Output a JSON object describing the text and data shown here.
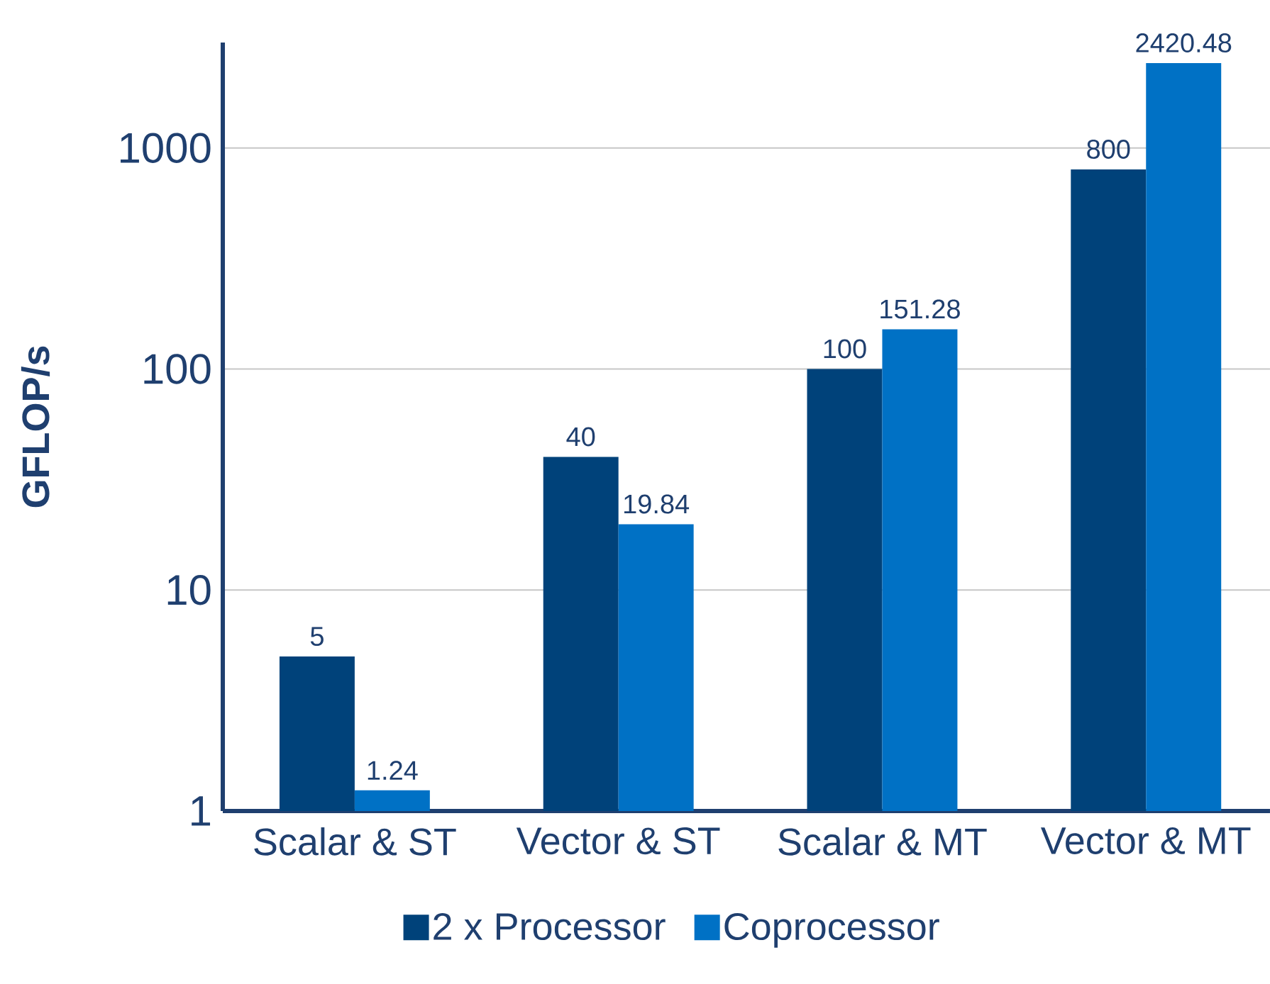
{
  "chart_data": {
    "type": "bar",
    "categories": [
      "Scalar & ST",
      "Vector & ST",
      "Scalar & MT",
      "Vector & MT"
    ],
    "series": [
      {
        "name": "2 x Processor",
        "color": "#00427a",
        "values": [
          5,
          40,
          100,
          800
        ]
      },
      {
        "name": "Coprocessor",
        "color": "#0071c5",
        "values": [
          1.24,
          19.84,
          151.28,
          2420.48
        ]
      }
    ],
    "ylabel": "GFLOP/s",
    "log": true,
    "ylim": [
      1,
      3000
    ],
    "yticks": [
      1,
      10,
      100,
      1000
    ],
    "grid": "y",
    "legend": "bottom",
    "data_labels": true
  }
}
